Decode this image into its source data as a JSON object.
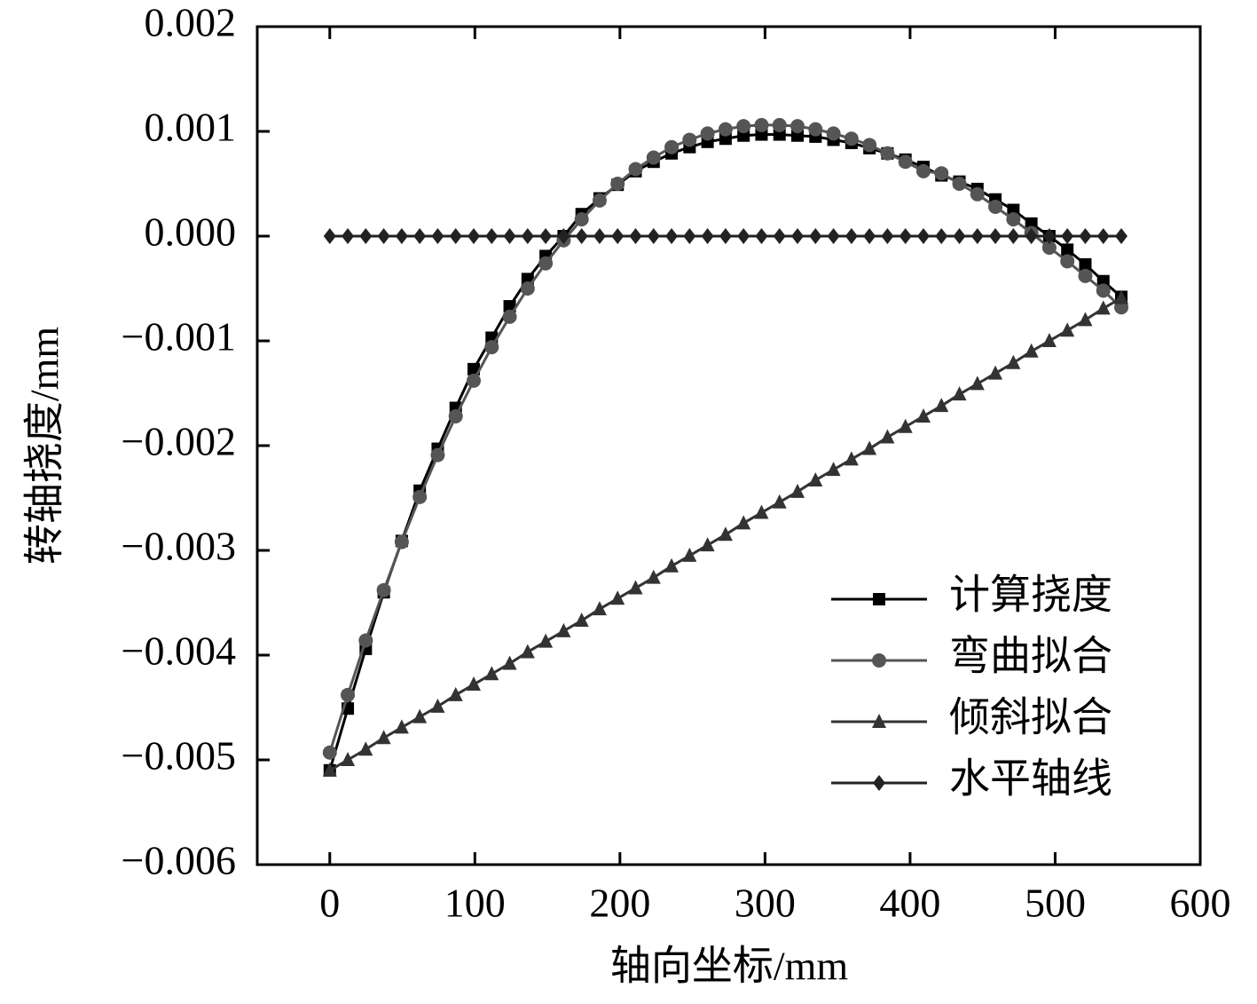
{
  "chart_data": {
    "type": "line",
    "xlabel": "轴向坐标/mm",
    "ylabel": "转轴挠度/mm",
    "x": [
      0,
      12.4,
      24.8,
      37.2,
      49.6,
      62,
      74.4,
      86.8,
      99.2,
      111.6,
      124,
      136.4,
      148.8,
      161.2,
      173.6,
      186,
      198.4,
      210.8,
      223.2,
      235.6,
      248,
      260.4,
      272.8,
      285.2,
      297.6,
      310,
      322.4,
      334.8,
      347.2,
      359.6,
      372,
      384.4,
      396.8,
      409.2,
      421.6,
      434,
      446.4,
      458.8,
      471.2,
      483.6,
      496,
      508.4,
      520.8,
      533.2,
      545.6
    ],
    "series": [
      {
        "name": "计算挠度",
        "color": "#000000",
        "marker": "square",
        "values": [
          -0.0051,
          -0.00451,
          -0.00394,
          -0.0034,
          -0.00291,
          -0.00243,
          -0.00203,
          -0.00164,
          -0.00127,
          -0.00097,
          -0.00067,
          -0.00041,
          -0.00019,
          0.0,
          0.00021,
          0.00036,
          0.00049,
          0.00062,
          0.00071,
          0.00079,
          0.00085,
          0.0009,
          0.00093,
          0.00096,
          0.00097,
          0.00097,
          0.00096,
          0.00095,
          0.00092,
          0.00089,
          0.00084,
          0.00079,
          0.00073,
          0.00066,
          0.00058,
          0.00052,
          0.00045,
          0.00035,
          0.00025,
          0.00012,
          0.0,
          -0.00013,
          -0.00027,
          -0.00043,
          -0.00058
        ]
      },
      {
        "name": "弯曲拟合",
        "color": "#555555",
        "marker": "circle",
        "values": [
          -0.00493,
          -0.00438,
          -0.00386,
          -0.00338,
          -0.00292,
          -0.00249,
          -0.00209,
          -0.00172,
          -0.00138,
          -0.00106,
          -0.00077,
          -0.0005,
          -0.00026,
          -4e-05,
          0.00016,
          0.00034,
          0.0005,
          0.00064,
          0.00075,
          0.00085,
          0.00092,
          0.00098,
          0.00102,
          0.00105,
          0.00106,
          0.00106,
          0.00105,
          0.00102,
          0.00098,
          0.00093,
          0.00087,
          0.00079,
          0.00071,
          0.00062,
          0.0006,
          0.0005,
          0.0004,
          0.00028,
          0.00016,
          3e-05,
          -0.00011,
          -0.00024,
          -0.00038,
          -0.00052,
          -0.00068
        ]
      },
      {
        "name": "倾斜拟合",
        "color": "#333333",
        "marker": "triangle",
        "values": [
          -0.0051,
          -0.005,
          -0.0049,
          -0.00479,
          -0.00469,
          -0.00459,
          -0.00449,
          -0.00438,
          -0.00428,
          -0.00418,
          -0.00408,
          -0.00397,
          -0.00387,
          -0.00377,
          -0.00367,
          -0.00356,
          -0.00346,
          -0.00336,
          -0.00326,
          -0.00315,
          -0.00305,
          -0.00295,
          -0.00285,
          -0.00274,
          -0.00264,
          -0.00254,
          -0.00244,
          -0.00233,
          -0.00223,
          -0.00213,
          -0.00203,
          -0.00192,
          -0.00182,
          -0.00172,
          -0.00162,
          -0.00151,
          -0.00141,
          -0.00131,
          -0.00121,
          -0.0011,
          -0.001,
          -0.0009,
          -0.0008,
          -0.00069,
          -0.00059
        ]
      },
      {
        "name": "水平轴线",
        "color": "#222222",
        "marker": "diamond",
        "values": [
          0,
          0,
          0,
          0,
          0,
          0,
          0,
          0,
          0,
          0,
          0,
          0,
          0,
          0,
          0,
          0,
          0,
          0,
          0,
          0,
          0,
          0,
          0,
          0,
          0,
          0,
          0,
          0,
          0,
          0,
          0,
          0,
          0,
          0,
          0,
          0,
          0,
          0,
          0,
          0,
          0,
          0,
          0,
          0,
          0
        ]
      }
    ],
    "xlim": [
      -50,
      600
    ],
    "xticks": [
      0,
      100,
      200,
      300,
      400,
      500,
      600
    ],
    "ylim": [
      -0.006,
      0.002
    ],
    "yticks": [
      {
        "value": -0.006,
        "label": "−0.006"
      },
      {
        "value": -0.005,
        "label": "−0.005"
      },
      {
        "value": -0.004,
        "label": "−0.004"
      },
      {
        "value": -0.003,
        "label": "−0.003"
      },
      {
        "value": -0.002,
        "label": "−0.002"
      },
      {
        "value": -0.001,
        "label": "−0.001"
      },
      {
        "value": 0,
        "label": "0.000"
      },
      0.001,
      0.002
    ],
    "legend": "lower right",
    "grid": false
  }
}
